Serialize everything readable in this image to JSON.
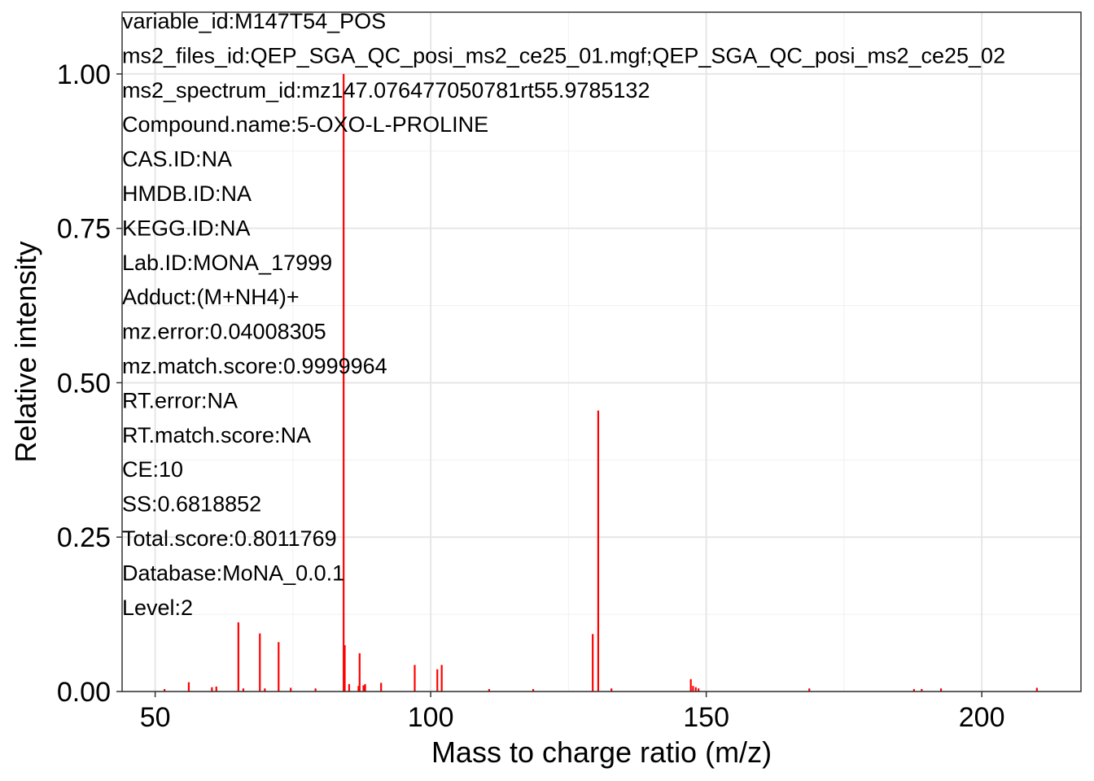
{
  "chart_data": {
    "type": "bar",
    "xlabel": "Mass to charge ratio (m/z)",
    "ylabel": "Relative intensity",
    "xlim": [
      44,
      218
    ],
    "ylim": [
      0,
      1.1
    ],
    "x_ticks": [
      50,
      100,
      150,
      200
    ],
    "x_tick_labels": [
      "50",
      "100",
      "150",
      "200"
    ],
    "y_ticks": [
      0,
      0.25,
      0.5,
      0.75,
      1.0
    ],
    "y_tick_labels": [
      "0.00",
      "0.25",
      "0.50",
      "0.75",
      "1.00"
    ],
    "grid": true,
    "bar_color": "#ff0000",
    "peaks": [
      {
        "mz": 51.7,
        "intensity": 0.004
      },
      {
        "mz": 56.1,
        "intensity": 0.015
      },
      {
        "mz": 60.3,
        "intensity": 0.007
      },
      {
        "mz": 61.1,
        "intensity": 0.008
      },
      {
        "mz": 65.1,
        "intensity": 0.112
      },
      {
        "mz": 66.0,
        "intensity": 0.005
      },
      {
        "mz": 69.0,
        "intensity": 0.094
      },
      {
        "mz": 69.9,
        "intensity": 0.005
      },
      {
        "mz": 72.4,
        "intensity": 0.08
      },
      {
        "mz": 74.6,
        "intensity": 0.006
      },
      {
        "mz": 79.1,
        "intensity": 0.005
      },
      {
        "mz": 84.2,
        "intensity": 1.0
      },
      {
        "mz": 84.4,
        "intensity": 0.075
      },
      {
        "mz": 85.2,
        "intensity": 0.012
      },
      {
        "mz": 86.9,
        "intensity": 0.009
      },
      {
        "mz": 87.1,
        "intensity": 0.062
      },
      {
        "mz": 87.8,
        "intensity": 0.01
      },
      {
        "mz": 88.1,
        "intensity": 0.012
      },
      {
        "mz": 91.0,
        "intensity": 0.014
      },
      {
        "mz": 97.1,
        "intensity": 0.043
      },
      {
        "mz": 101.2,
        "intensity": 0.036
      },
      {
        "mz": 102.0,
        "intensity": 0.043
      },
      {
        "mz": 110.6,
        "intensity": 0.004
      },
      {
        "mz": 118.6,
        "intensity": 0.004
      },
      {
        "mz": 129.4,
        "intensity": 0.093
      },
      {
        "mz": 130.4,
        "intensity": 0.455
      },
      {
        "mz": 132.8,
        "intensity": 0.005
      },
      {
        "mz": 147.2,
        "intensity": 0.02
      },
      {
        "mz": 147.6,
        "intensity": 0.009
      },
      {
        "mz": 148.1,
        "intensity": 0.007
      },
      {
        "mz": 148.6,
        "intensity": 0.005
      },
      {
        "mz": 168.7,
        "intensity": 0.005
      },
      {
        "mz": 187.7,
        "intensity": 0.004
      },
      {
        "mz": 189.1,
        "intensity": 0.004
      },
      {
        "mz": 192.6,
        "intensity": 0.005
      },
      {
        "mz": 210.0,
        "intensity": 0.006
      }
    ],
    "annotations": [
      "variable_id:M147T54_POS",
      "ms2_files_id:QEP_SGA_QC_posi_ms2_ce25_01.mgf;QEP_SGA_QC_posi_ms2_ce25_02",
      "ms2_spectrum_id:mz147.076477050781rt55.9785132",
      "Compound.name:5-OXO-L-PROLINE",
      "CAS.ID:NA",
      "HMDB.ID:NA",
      "KEGG.ID:NA",
      "Lab.ID:MONA_17999",
      "Adduct:(M+NH4)+",
      "mz.error:0.04008305",
      "mz.match.score:0.9999964",
      "RT.error:NA",
      "RT.match.score:NA",
      "CE:10",
      "SS:0.6818852",
      "Total.score:0.8011769",
      "Database:MoNA_0.0.1",
      "Level:2"
    ]
  }
}
